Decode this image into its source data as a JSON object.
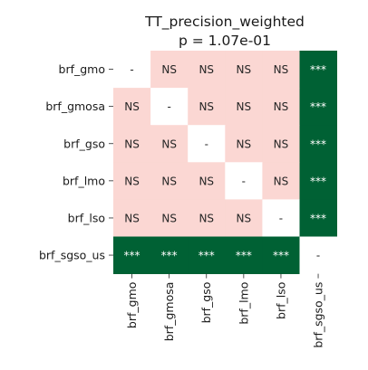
{
  "chart_data": {
    "type": "heatmap",
    "title": "TT_precision_weighted",
    "subtitle": "p = 1.07e-01",
    "rows": [
      "brf_gmo",
      "brf_gmosa",
      "brf_gso",
      "brf_lmo",
      "brf_lso",
      "brf_sgso_us"
    ],
    "columns": [
      "brf_gmo",
      "brf_gmosa",
      "brf_gso",
      "brf_lmo",
      "brf_lso",
      "brf_sgso_us"
    ],
    "cells": [
      [
        "-",
        "NS",
        "NS",
        "NS",
        "NS",
        "***"
      ],
      [
        "NS",
        "-",
        "NS",
        "NS",
        "NS",
        "***"
      ],
      [
        "NS",
        "NS",
        "-",
        "NS",
        "NS",
        "***"
      ],
      [
        "NS",
        "NS",
        "NS",
        "-",
        "NS",
        "***"
      ],
      [
        "NS",
        "NS",
        "NS",
        "NS",
        "-",
        "***"
      ],
      [
        "***",
        "***",
        "***",
        "***",
        "***",
        "-"
      ]
    ],
    "colors": {
      "NS": "#fbd7d3",
      "***": "#006134",
      "-": "#ffffff"
    },
    "text_colors": {
      "NS": "#262626",
      "***": "#ffffff",
      "-": "#262626"
    }
  }
}
